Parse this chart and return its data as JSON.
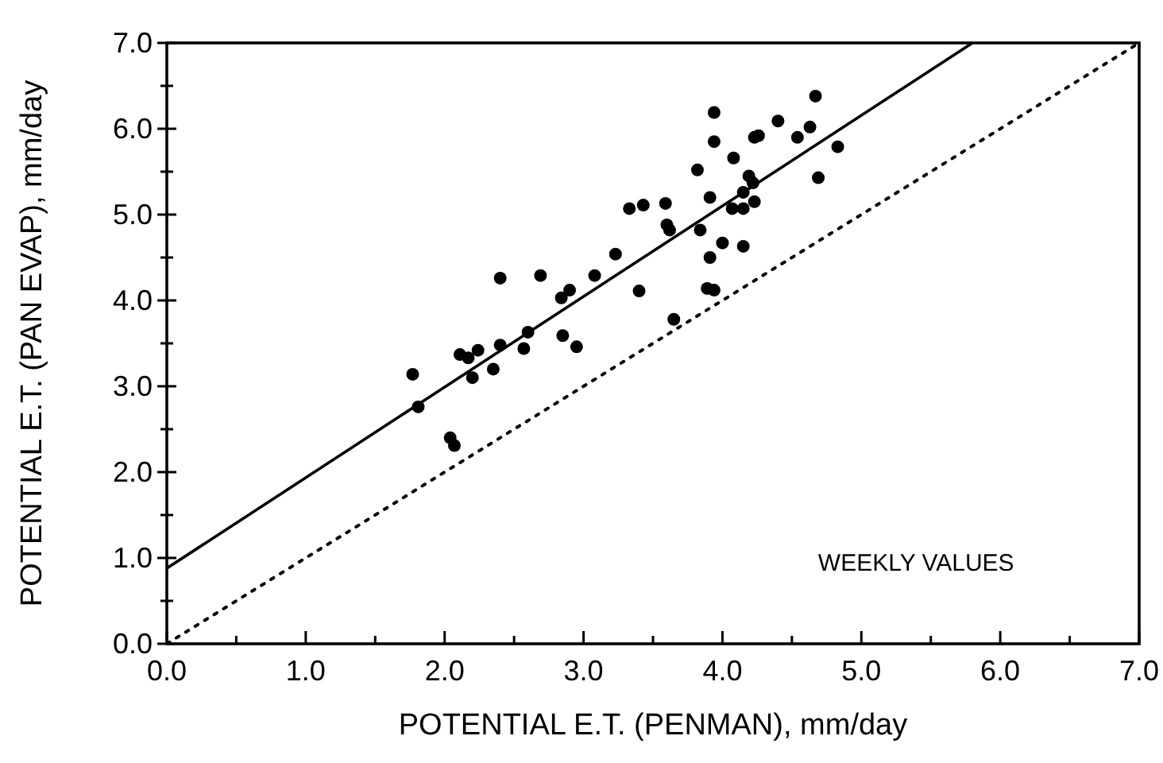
{
  "chart_data": {
    "type": "scatter",
    "xlabel": "POTENTIAL E.T. (PENMAN), mm/day",
    "ylabel": "POTENTIAL E.T. (PAN EVAP), mm/day",
    "annotations": [
      "WEEKLY VALUES"
    ],
    "xlim": [
      0,
      7
    ],
    "ylim": [
      0,
      7
    ],
    "xticks": [
      {
        "value": 0,
        "label": "0.0"
      },
      {
        "value": 0.5,
        "label": null
      },
      {
        "value": 1,
        "label": "1.0"
      },
      {
        "value": 1.5,
        "label": null
      },
      {
        "value": 2,
        "label": "2.0"
      },
      {
        "value": 2.5,
        "label": null
      },
      {
        "value": 3,
        "label": "3.0"
      },
      {
        "value": 3.5,
        "label": null
      },
      {
        "value": 4,
        "label": "4.0"
      },
      {
        "value": 4.5,
        "label": null
      },
      {
        "value": 5,
        "label": "5.0"
      },
      {
        "value": 5.5,
        "label": null
      },
      {
        "value": 6,
        "label": "6.0"
      },
      {
        "value": 6.5,
        "label": null
      },
      {
        "value": 7,
        "label": "7.0"
      }
    ],
    "yticks": [
      {
        "value": 0,
        "label": "0.0"
      },
      {
        "value": 0.5,
        "label": null
      },
      {
        "value": 1,
        "label": "1.0"
      },
      {
        "value": 1.5,
        "label": null
      },
      {
        "value": 2,
        "label": "2.0"
      },
      {
        "value": 2.5,
        "label": null
      },
      {
        "value": 3,
        "label": "3.0"
      },
      {
        "value": 3.5,
        "label": null
      },
      {
        "value": 4,
        "label": "4.0"
      },
      {
        "value": 4.5,
        "label": null
      },
      {
        "value": 5,
        "label": "5.0"
      },
      {
        "value": 5.5,
        "label": null
      },
      {
        "value": 6,
        "label": "6.0"
      },
      {
        "value": 6.5,
        "label": null
      },
      {
        "value": 7,
        "label": "7.0"
      }
    ],
    "grid": false,
    "marker": "circle",
    "series": [
      {
        "color": "#000000",
        "x": [
          1.77,
          1.81,
          2.04,
          2.07,
          2.11,
          2.17,
          2.24,
          2.2,
          2.35,
          2.4,
          2.4,
          2.57,
          2.6,
          2.69,
          2.85,
          2.95,
          2.84,
          2.9,
          3.08,
          3.23,
          3.4,
          3.65,
          3.62,
          3.84,
          3.89,
          3.94,
          3.91,
          3.33,
          3.43,
          3.59,
          3.6,
          3.82,
          4.0,
          3.91,
          3.94,
          3.94,
          4.08,
          4.15,
          4.07,
          4.15,
          4.23,
          4.15,
          4.19,
          4.22,
          4.23,
          4.26,
          4.4,
          4.54,
          4.67,
          4.63,
          4.69,
          4.83
        ],
        "values": [
          3.14,
          2.76,
          2.4,
          2.31,
          3.37,
          3.33,
          3.42,
          3.1,
          3.2,
          3.48,
          4.26,
          3.44,
          3.63,
          4.29,
          3.59,
          3.46,
          4.03,
          4.12,
          4.29,
          4.54,
          4.11,
          3.78,
          4.82,
          4.82,
          4.14,
          4.12,
          4.5,
          5.07,
          5.11,
          5.13,
          4.88,
          5.52,
          4.67,
          5.2,
          5.85,
          6.19,
          5.66,
          4.63,
          5.07,
          5.07,
          5.15,
          5.26,
          5.45,
          5.37,
          5.9,
          5.92,
          6.09,
          5.9,
          6.38,
          6.02,
          5.43,
          5.79
        ]
      },
      {
        "type": "line",
        "color": "#000000",
        "line_style": "solid",
        "marker": "none",
        "x": [
          0,
          5.8
        ],
        "values": [
          0.88,
          7.0
        ]
      },
      {
        "type": "line",
        "color": "#000000",
        "line_style": "dotted",
        "marker": "none",
        "x": [
          0,
          7
        ],
        "values": [
          0,
          7
        ]
      }
    ]
  }
}
